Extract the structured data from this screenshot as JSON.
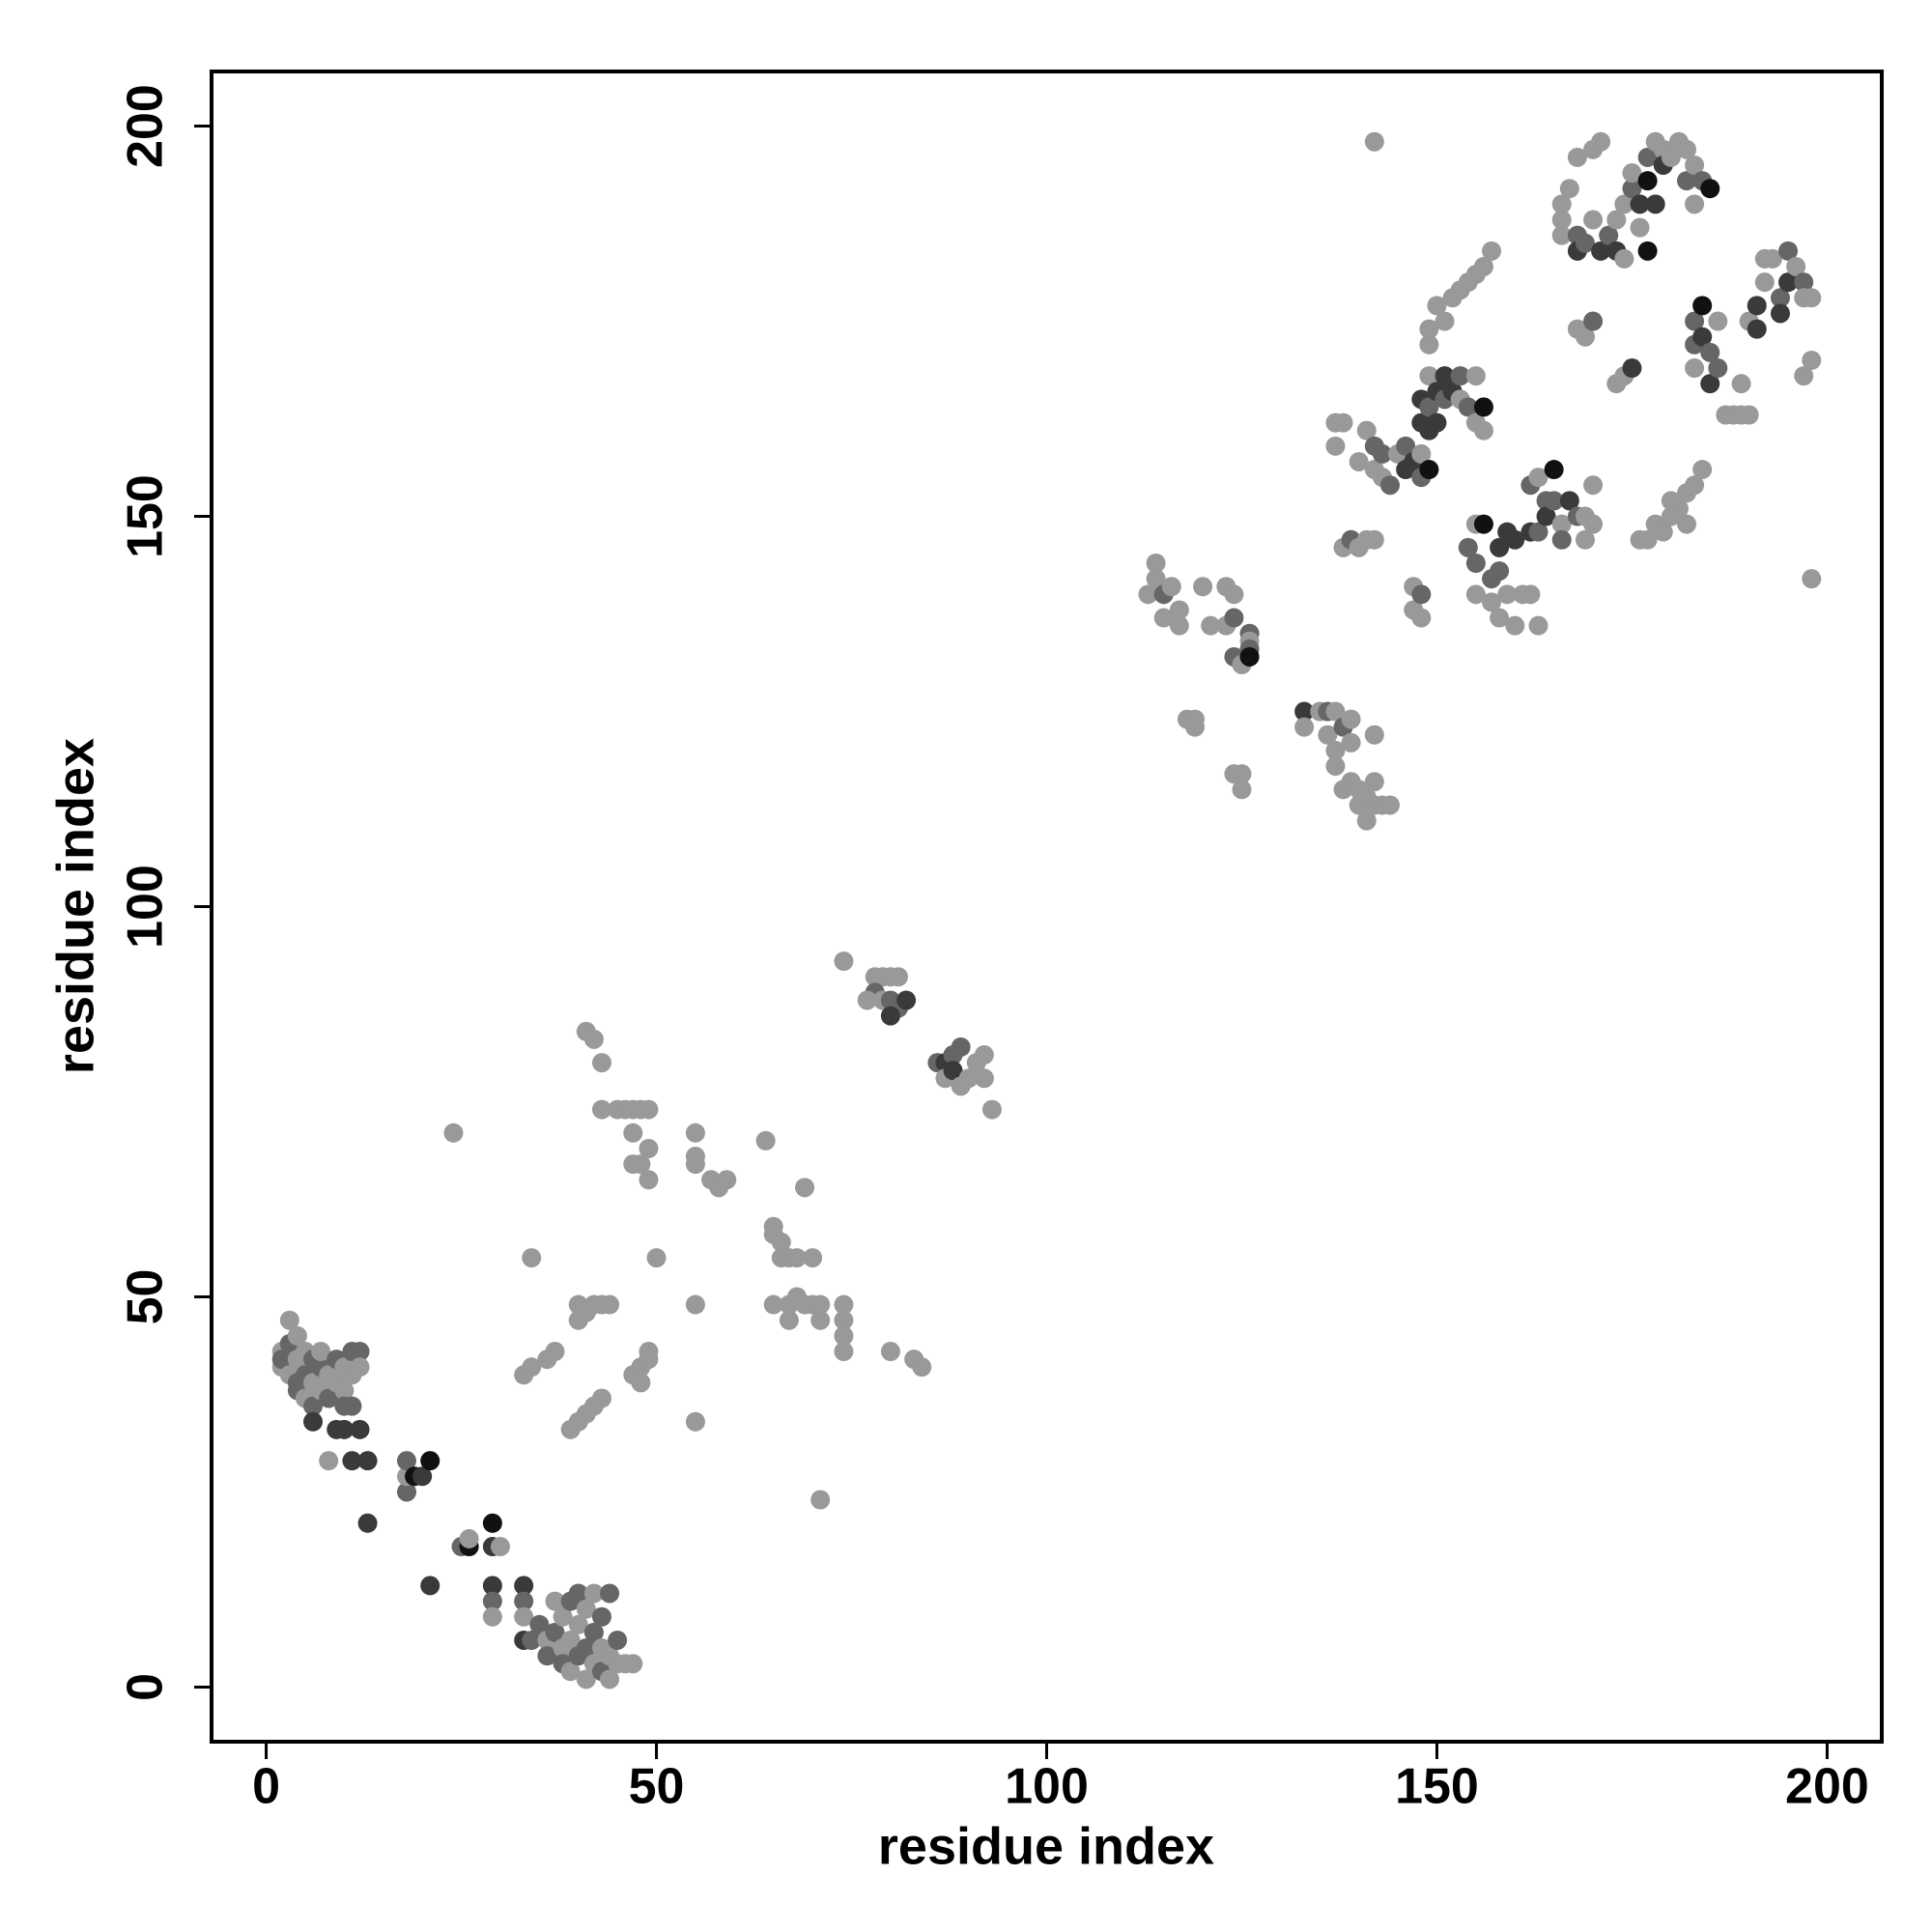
{
  "chart_data": {
    "type": "scatter",
    "xlabel": "residue index",
    "ylabel": "residue index",
    "xlim": [
      -7,
      207
    ],
    "ylim": [
      -7,
      207
    ],
    "xticks": [
      0,
      50,
      100,
      150,
      200
    ],
    "yticks": [
      0,
      50,
      100,
      150,
      200
    ],
    "series": [
      {
        "x": [
          2,
          2,
          2,
          3,
          3,
          3,
          4,
          4,
          4,
          4,
          5,
          5,
          5,
          6,
          6,
          6,
          6,
          7,
          7,
          7,
          8,
          8,
          8,
          9,
          9,
          9,
          10,
          10,
          10,
          10,
          11,
          11,
          11,
          11,
          12,
          12,
          12,
          13,
          13,
          18,
          18,
          18,
          19,
          20,
          21,
          25,
          26,
          26,
          29,
          29,
          30,
          21,
          29,
          29,
          29,
          33,
          33,
          33,
          33,
          34,
          35,
          36,
          36,
          37,
          37,
          38,
          38,
          38,
          39,
          39,
          39,
          40,
          40,
          40,
          41,
          41,
          41,
          42,
          42,
          42,
          43,
          43,
          43,
          44,
          44,
          44,
          45,
          45,
          46,
          47,
          24,
          34,
          33,
          34,
          36,
          37,
          39,
          40,
          41,
          42,
          43,
          40,
          40,
          41,
          42,
          43,
          44,
          41,
          42,
          43,
          43,
          45,
          46,
          47,
          48,
          49,
          47,
          47,
          48,
          49,
          49,
          47,
          48,
          49,
          49,
          48,
          50,
          55,
          55,
          55,
          55,
          55,
          57,
          58,
          59,
          64,
          65,
          65,
          66,
          66,
          67,
          68,
          65,
          67,
          67,
          68,
          69,
          69,
          70,
          70,
          71,
          71,
          71,
          74,
          74,
          74,
          74,
          80,
          83,
          84,
          74,
          78,
          79,
          80,
          81,
          78,
          79,
          80,
          81,
          82,
          77,
          80,
          86,
          87,
          87,
          88,
          88,
          89,
          89,
          90,
          91,
          92,
          93,
          92,
          113,
          114,
          114,
          115,
          115,
          116,
          117,
          117,
          118,
          119,
          119,
          120,
          121,
          123,
          123,
          124,
          124,
          124,
          124,
          125,
          125,
          125,
          126,
          126,
          126,
          126,
          133,
          133,
          135,
          136,
          136,
          137,
          137,
          137,
          138,
          139,
          139,
          138,
          139,
          140,
          140,
          141,
          141,
          142,
          142,
          142,
          143,
          144,
          137,
          137,
          138,
          138,
          139,
          140,
          140,
          141,
          142,
          141,
          142,
          142,
          143,
          143,
          144,
          145,
          146,
          146,
          147,
          148,
          148,
          148,
          149,
          149,
          147,
          147,
          148,
          148,
          148,
          149,
          149,
          150,
          150,
          151,
          151,
          152,
          153,
          153,
          154,
          155,
          156,
          155,
          156,
          149,
          149,
          150,
          151,
          152,
          153,
          154,
          155,
          156,
          157,
          154,
          155,
          155,
          155,
          156,
          157,
          157,
          158,
          158,
          158,
          159,
          159,
          160,
          160,
          161,
          162,
          162,
          163,
          163,
          162,
          163,
          164,
          164,
          165,
          165,
          166,
          166,
          167,
          168,
          169,
          169,
          170,
          170,
          142,
          166,
          166,
          166,
          167,
          168,
          168,
          168,
          169,
          170,
          171,
          170,
          171,
          172,
          173,
          173,
          174,
          174,
          175,
          175,
          176,
          176,
          177,
          177,
          177,
          178,
          178,
          179,
          179,
          180,
          181,
          182,
          182,
          183,
          183,
          184,
          185,
          168,
          169,
          170,
          173,
          174,
          175,
          183,
          183,
          183,
          184,
          184,
          185,
          185,
          186,
          186,
          187,
          188,
          189,
          189,
          190,
          190,
          191,
          191,
          192,
          192,
          193,
          194,
          194,
          195,
          195,
          196,
          197,
          197,
          198,
          197,
          198,
          198,
          176,
          177,
          178,
          179,
          180,
          181,
          182,
          183,
          184,
          180,
          182
        ],
        "values": [
          41,
          43,
          42,
          40,
          44,
          47,
          39,
          42,
          45,
          38,
          37,
          40,
          43,
          36,
          39,
          42,
          34,
          38,
          41,
          43,
          37,
          40,
          29,
          39,
          42,
          33,
          38,
          41,
          36,
          33,
          43,
          40,
          36,
          29,
          43,
          41,
          33,
          29,
          21,
          25,
          27,
          29,
          27,
          27,
          29,
          18,
          18,
          19,
          21,
          18,
          18,
          13,
          13,
          11,
          9,
          13,
          11,
          9,
          6,
          6,
          8,
          6,
          4,
          11,
          7,
          5,
          3,
          9,
          11,
          6,
          2,
          4,
          8,
          12,
          1,
          5,
          10,
          3,
          7,
          12,
          2,
          5,
          9,
          1,
          4,
          12,
          3,
          6,
          3,
          3,
          71,
          55,
          40,
          41,
          42,
          43,
          33,
          34,
          35,
          36,
          37,
          47,
          49,
          48,
          49,
          49,
          49,
          84,
          83,
          80,
          74,
          74,
          74,
          74,
          74,
          74,
          71,
          67,
          67,
          69,
          65,
          40,
          41,
          42,
          43,
          39,
          55,
          71,
          68,
          67,
          49,
          34,
          65,
          64,
          65,
          70,
          58,
          59,
          57,
          55,
          55,
          55,
          49,
          49,
          47,
          50,
          64,
          49,
          49,
          55,
          47,
          49,
          24,
          49,
          47,
          45,
          43,
          43,
          42,
          41,
          93,
          91,
          91,
          91,
          91,
          89,
          88,
          88,
          87,
          88,
          88,
          86,
          80,
          80,
          78,
          81,
          79,
          82,
          77,
          78,
          80,
          78,
          74,
          81,
          140,
          142,
          144,
          137,
          140,
          141,
          138,
          136,
          124,
          124,
          123,
          141,
          136,
          136,
          141,
          140,
          137,
          132,
          117,
          131,
          115,
          117,
          135,
          134,
          133,
          132,
          125,
          123,
          125,
          125,
          122,
          125,
          120,
          118,
          123,
          124,
          121,
          115,
          116,
          115,
          113,
          114,
          111,
          122,
          116,
          113,
          113,
          113,
          162,
          159,
          162,
          146,
          147,
          146,
          157,
          147,
          147,
          161,
          159,
          156,
          158,
          155,
          154,
          158,
          156,
          159,
          157,
          155,
          158,
          162,
          161,
          156,
          141,
          138,
          140,
          137,
          165,
          168,
          164,
          166,
          162,
          168,
          165,
          166,
          168,
          165,
          164,
          162,
          164,
          168,
          161,
          172,
          174,
          177,
          175,
          178,
          179,
          180,
          181,
          182,
          184,
          146,
          144,
          149,
          140,
          149,
          142,
          139,
          146,
          143,
          137,
          148,
          140,
          147,
          136,
          140,
          140,
          148,
          148,
          136,
          154,
          155,
          152,
          150,
          156,
          152,
          149,
          147,
          152,
          150,
          150,
          147,
          154,
          149,
          198,
          190,
          188,
          186,
          192,
          196,
          186,
          184,
          185,
          197,
          198,
          188,
          184,
          186,
          184,
          188,
          183,
          190,
          192,
          194,
          187,
          190,
          193,
          196,
          184,
          190,
          198,
          197,
          195,
          196,
          198,
          197,
          193,
          195,
          190,
          193,
          192,
          174,
          173,
          175,
          167,
          168,
          169,
          175,
          172,
          169,
          177,
          173,
          171,
          167,
          169,
          175,
          163,
          163,
          163,
          167,
          163,
          175,
          177,
          174,
          180,
          183,
          183,
          178,
          176,
          184,
          180,
          182,
          180,
          178,
          178,
          168,
          170,
          142,
          147,
          147,
          149,
          148,
          150,
          151,
          153,
          154,
          156,
          152,
          149
        ],
        "colors": [
          "#999",
          "#999",
          "#666",
          "#999",
          "#666",
          "#999",
          "#666",
          "#999",
          "#999",
          "#666",
          "#999",
          "#666",
          "#999",
          "#666",
          "#999",
          "#666",
          "#3a3a3a",
          "#999",
          "#666",
          "#999",
          "#666",
          "#999",
          "#999",
          "#999",
          "#666",
          "#3a3a3a",
          "#999",
          "#999",
          "#666",
          "#3a3a3a",
          "#666",
          "#999",
          "#666",
          "#3a3a3a",
          "#666",
          "#999",
          "#3a3a3a",
          "#3a3a3a",
          "#3a3a3a",
          "#666",
          "#999",
          "#666",
          "#111",
          "#3a3a3a",
          "#111",
          "#666",
          "#111",
          "#999",
          "#111",
          "#3a3a3a",
          "#999",
          "#3a3a3a",
          "#3a3a3a",
          "#666",
          "#999",
          "#3a3a3a",
          "#666",
          "#999",
          "#3a3a3a",
          "#666",
          "#666",
          "#999",
          "#666",
          "#999",
          "#666",
          "#999",
          "#666",
          "#999",
          "#666",
          "#999",
          "#999",
          "#666",
          "#999",
          "#666",
          "#999",
          "#666",
          "#999",
          "#999",
          "#666",
          "#999",
          "#666",
          "#999",
          "#666",
          "#999",
          "#999",
          "#666",
          "#999",
          "#666",
          "#999",
          "#999",
          "#999",
          "#999",
          "#999",
          "#999",
          "#999",
          "#999",
          "#999",
          "#999",
          "#999",
          "#999",
          "#999",
          "#999",
          "#999",
          "#999",
          "#999",
          "#999",
          "#999",
          "#999",
          "#999",
          "#999",
          "#999",
          "#999",
          "#999",
          "#999",
          "#999",
          "#999",
          "#999",
          "#999",
          "#999",
          "#999",
          "#999",
          "#999",
          "#999",
          "#999",
          "#999",
          "#999",
          "#999",
          "#999",
          "#999",
          "#999",
          "#999",
          "#999",
          "#999",
          "#999",
          "#999",
          "#999",
          "#999",
          "#999",
          "#999",
          "#999",
          "#999",
          "#999",
          "#999",
          "#999",
          "#999",
          "#999",
          "#999",
          "#999",
          "#999",
          "#999",
          "#999",
          "#999",
          "#999",
          "#999",
          "#999",
          "#999",
          "#999",
          "#999",
          "#999",
          "#999",
          "#999",
          "#999",
          "#999",
          "#999",
          "#999",
          "#666",
          "#999",
          "#666",
          "#666",
          "#3a3a3a",
          "#999",
          "#3a3a3a",
          "#666",
          "#3a3a3a",
          "#999",
          "#666",
          "#3a3a3a",
          "#666",
          "#999",
          "#999",
          "#999",
          "#999",
          "#999",
          "#999",
          "#999",
          "#999",
          "#999",
          "#999",
          "#666",
          "#999",
          "#999",
          "#999",
          "#999",
          "#999",
          "#999",
          "#999",
          "#999",
          "#999",
          "#999",
          "#999",
          "#666",
          "#666",
          "#999",
          "#999",
          "#999",
          "#999",
          "#666",
          "#999",
          "#666",
          "#111",
          "#3a3a3a",
          "#999",
          "#999",
          "#666",
          "#999",
          "#999",
          "#999",
          "#999",
          "#666",
          "#999",
          "#999",
          "#999",
          "#999",
          "#999",
          "#999",
          "#999",
          "#999",
          "#999",
          "#999",
          "#999",
          "#999",
          "#999",
          "#999",
          "#999",
          "#999",
          "#999",
          "#666",
          "#999",
          "#999",
          "#999",
          "#999",
          "#999",
          "#666",
          "#999",
          "#666",
          "#999",
          "#666",
          "#999",
          "#3a3a3a",
          "#666",
          "#3a3a3a",
          "#666",
          "#999",
          "#3a3a3a",
          "#3a3a3a",
          "#111",
          "#999",
          "#999",
          "#666",
          "#999",
          "#3a3a3a",
          "#999",
          "#666",
          "#3a3a3a",
          "#3a3a3a",
          "#3a3a3a",
          "#666",
          "#3a3a3a",
          "#666",
          "#999",
          "#666",
          "#999",
          "#111",
          "#999",
          "#999",
          "#999",
          "#999",
          "#999",
          "#999",
          "#999",
          "#999",
          "#999",
          "#999",
          "#999",
          "#999",
          "#666",
          "#666",
          "#999",
          "#999",
          "#111",
          "#666",
          "#999",
          "#3a3a3a",
          "#666",
          "#999",
          "#3a3a3a",
          "#999",
          "#3a3a3a",
          "#999",
          "#999",
          "#999",
          "#3a3a3a",
          "#666",
          "#999",
          "#666",
          "#999",
          "#666",
          "#3a3a3a",
          "#111",
          "#666",
          "#999",
          "#666",
          "#3a3a3a",
          "#666",
          "#999",
          "#999",
          "#999",
          "#999",
          "#999",
          "#999",
          "#999",
          "#999",
          "#999",
          "#999",
          "#666",
          "#3a3a3a",
          "#666",
          "#999",
          "#999",
          "#999",
          "#3a3a3a",
          "#666",
          "#3a3a3a",
          "#999",
          "#999",
          "#999",
          "#666",
          "#999",
          "#999",
          "#3a3a3a",
          "#111",
          "#666",
          "#111",
          "#3a3a3a",
          "#999",
          "#999",
          "#3a3a3a",
          "#999",
          "#999",
          "#999",
          "#666",
          "#999",
          "#999",
          "#666",
          "#111",
          "#999",
          "#999",
          "#666",
          "#999",
          "#999",
          "#3a3a3a",
          "#666",
          "#666",
          "#999",
          "#111",
          "#3a3a3a",
          "#666",
          "#3a3a3a",
          "#666",
          "#999",
          "#999",
          "#999",
          "#999",
          "#999",
          "#999",
          "#999",
          "#3a3a3a",
          "#3a3a3a",
          "#999",
          "#999",
          "#999",
          "#666",
          "#3a3a3a",
          "#666",
          "#3a3a3a",
          "#999",
          "#666",
          "#999",
          "#999",
          "#999",
          "#999",
          "#999",
          "#999",
          "#999",
          "#999",
          "#999",
          "#999",
          "#999",
          "#999",
          "#999",
          "#999",
          "#999",
          "#999"
        ]
      }
    ]
  }
}
